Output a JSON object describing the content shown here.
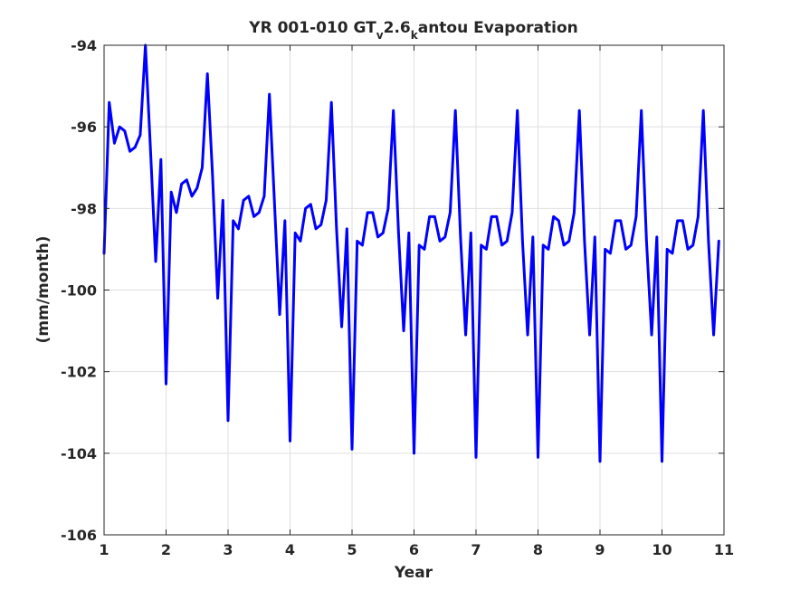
{
  "chart_data": {
    "type": "line",
    "title_parts": {
      "prefix": "YR 001-010 GT",
      "sub_v": "v",
      "mid": "2.6",
      "sub_k": "k",
      "suffix": "antou Evaporation"
    },
    "xlabel": "Year",
    "ylabel": "(mm/month)",
    "xlim": [
      1,
      11
    ],
    "ylim": [
      -106,
      -94
    ],
    "xticks": [
      1,
      2,
      3,
      4,
      5,
      6,
      7,
      8,
      9,
      10,
      11
    ],
    "yticks": [
      -106,
      -104,
      -102,
      -100,
      -98,
      -96,
      -94
    ],
    "grid": true,
    "line_color": "#0000ff",
    "series": [
      {
        "x": [
          1.0,
          1.083,
          1.167,
          1.25,
          1.333,
          1.417,
          1.5,
          1.583,
          1.667,
          1.75,
          1.833,
          1.917,
          2.0,
          2.083,
          2.167,
          2.25,
          2.333,
          2.417,
          2.5,
          2.583,
          2.667,
          2.75,
          2.833,
          2.917,
          3.0,
          3.083,
          3.167,
          3.25,
          3.333,
          3.417,
          3.5,
          3.583,
          3.667,
          3.75,
          3.833,
          3.917,
          4.0,
          4.083,
          4.167,
          4.25,
          4.333,
          4.417,
          4.5,
          4.583,
          4.667,
          4.75,
          4.833,
          4.917,
          5.0,
          5.083,
          5.167,
          5.25,
          5.333,
          5.417,
          5.5,
          5.583,
          5.667,
          5.75,
          5.833,
          5.917,
          6.0,
          6.083,
          6.167,
          6.25,
          6.333,
          6.417,
          6.5,
          6.583,
          6.667,
          6.75,
          6.833,
          6.917,
          7.0,
          7.083,
          7.167,
          7.25,
          7.333,
          7.417,
          7.5,
          7.583,
          7.667,
          7.75,
          7.833,
          7.917,
          8.0,
          8.083,
          8.167,
          8.25,
          8.333,
          8.417,
          8.5,
          8.583,
          8.667,
          8.75,
          8.833,
          8.917,
          9.0,
          9.083,
          9.167,
          9.25,
          9.333,
          9.417,
          9.5,
          9.583,
          9.667,
          9.75,
          9.833,
          9.917,
          10.0,
          10.083,
          10.167,
          10.25,
          10.333,
          10.417,
          10.5,
          10.583,
          10.667,
          10.75,
          10.833,
          10.917
        ],
        "y": [
          -99.1,
          -95.4,
          -96.4,
          -96.0,
          -96.1,
          -96.6,
          -96.5,
          -96.2,
          -94.0,
          -96.6,
          -99.3,
          -96.8,
          -102.3,
          -97.6,
          -98.1,
          -97.4,
          -97.3,
          -97.7,
          -97.5,
          -97.0,
          -94.7,
          -97.2,
          -100.2,
          -97.8,
          -103.2,
          -98.3,
          -98.5,
          -97.8,
          -97.7,
          -98.2,
          -98.1,
          -97.7,
          -95.2,
          -97.9,
          -100.6,
          -98.3,
          -103.7,
          -98.6,
          -98.8,
          -98.0,
          -97.9,
          -98.5,
          -98.4,
          -97.8,
          -95.4,
          -98.5,
          -100.9,
          -98.5,
          -103.9,
          -98.8,
          -98.9,
          -98.1,
          -98.1,
          -98.7,
          -98.6,
          -98.0,
          -95.6,
          -98.6,
          -101.0,
          -98.6,
          -104.0,
          -98.9,
          -99.0,
          -98.2,
          -98.2,
          -98.8,
          -98.7,
          -98.1,
          -95.6,
          -98.7,
          -101.1,
          -98.6,
          -104.1,
          -98.9,
          -99.0,
          -98.2,
          -98.2,
          -98.9,
          -98.8,
          -98.1,
          -95.6,
          -98.8,
          -101.1,
          -98.7,
          -104.1,
          -98.9,
          -99.0,
          -98.2,
          -98.3,
          -98.9,
          -98.8,
          -98.1,
          -95.6,
          -98.8,
          -101.1,
          -98.7,
          -104.2,
          -99.0,
          -99.1,
          -98.3,
          -98.3,
          -99.0,
          -98.9,
          -98.2,
          -95.6,
          -98.8,
          -101.1,
          -98.7,
          -104.2,
          -99.0,
          -99.1,
          -98.3,
          -98.3,
          -99.0,
          -98.9,
          -98.2,
          -95.6,
          -98.8,
          -101.1,
          -98.8
        ]
      }
    ]
  }
}
